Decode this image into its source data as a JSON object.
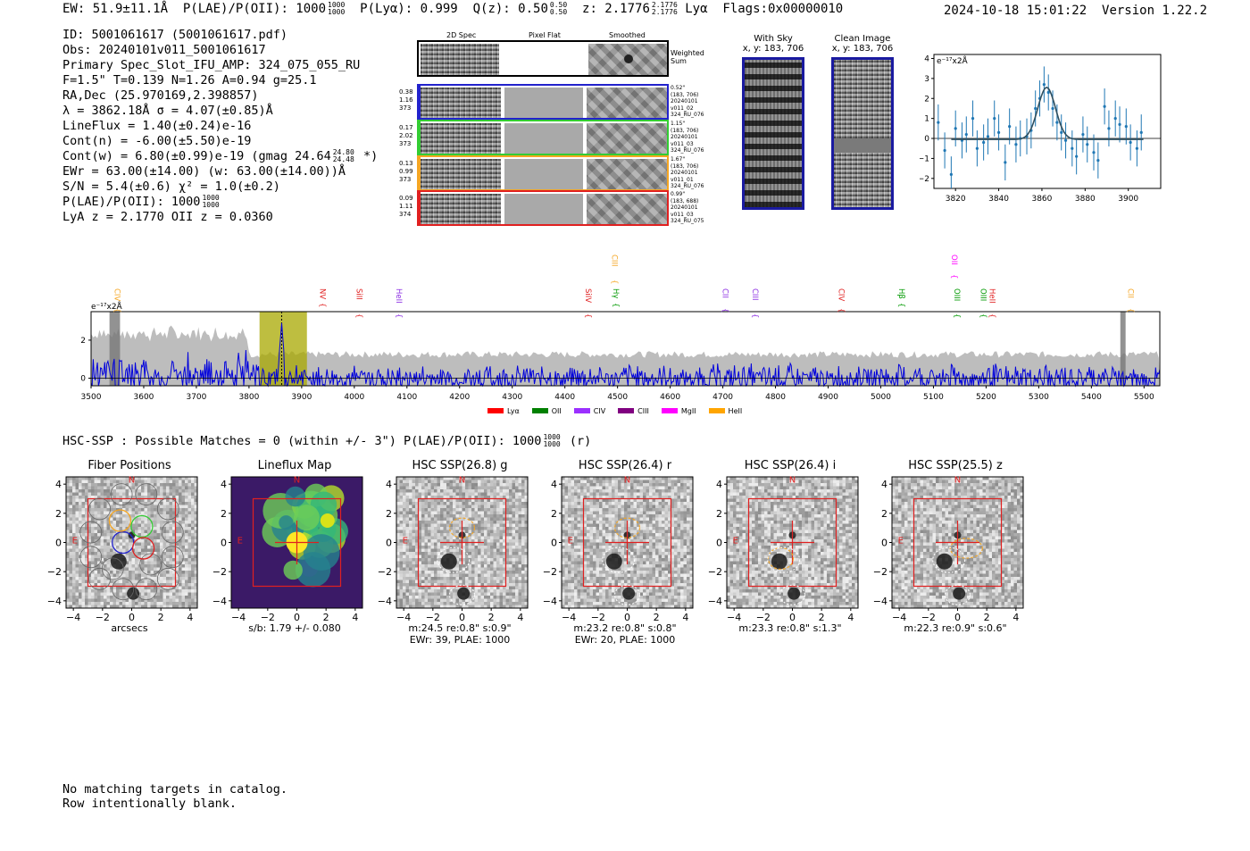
{
  "header": {
    "ew": "EW: 51.9±11.1Å",
    "plae_label": "P(LAE)/P(OII): 1000",
    "plae_sup": "1000",
    "plae_sub": "1000",
    "plya": "P(Lyα): 0.999",
    "qz_label": "Q(z): 0.50",
    "qz_sup": "0.50",
    "qz_sub": "0.50",
    "z_label": "z: 2.1776",
    "z_sup": "2.1776",
    "z_sub": "2.1776",
    "z_line": "Lyα",
    "flags": "Flags:0x00000010",
    "datetime": "2024-10-18 15:01:22",
    "version": "Version 1.22.2"
  },
  "info": {
    "id": "ID: 5001061617 (5001061617.pdf)",
    "obs": "Obs: 20240101v011_5001061617",
    "primary": "Primary Spec_Slot_IFU_AMP: 324_075_055_RU",
    "fparams": "F=1.5\"  T=0.139  N=1.26  A=0.94  g=25.1",
    "radec": "RA,Dec (25.970169,2.398857)",
    "lambda": "λ = 3862.18Å  σ = 4.07(±0.85)Å",
    "lineflux": "LineFlux = 1.40(±0.24)e-16",
    "contn": "Cont(n) = -6.00(±5.50)e-19",
    "contw_main": "Cont(w) = 6.80(±0.99)e-19 (gmag 24.64",
    "contw_sup": "24.80",
    "contw_sub": "24.48",
    "contw_end": " *)",
    "ewr": "EWr = 63.00(±14.00) (w: 63.00(±14.00))Å",
    "sn": "S/N = 5.4(±0.6)  χ² = 1.0(±0.2)",
    "plae_main": "P(LAE)/P(OII): 1000",
    "plae_sup": "1000",
    "plae_sub": "1000",
    "lya_z": "LyA z = 2.1770  OII z = 0.0360"
  },
  "spec2d": {
    "col_headers": [
      "2D Spec",
      "Pixel Flat",
      "Smoothed"
    ],
    "weighted_label": "Weighted Sum",
    "fibers": [
      {
        "left": [
          "0.38",
          "1.16",
          "373"
        ],
        "right": [
          "0.52\"",
          "(183, 706)",
          "20240101",
          "v011_02",
          "324_RU_076"
        ],
        "color": "#2222cc"
      },
      {
        "left": [
          "0.17",
          "2.02",
          "373"
        ],
        "right": [
          "1.15\"",
          "(183, 706)",
          "20240101",
          "v011_03",
          "324_RU_076"
        ],
        "color": "#33cc33"
      },
      {
        "left": [
          "0.13",
          "0.99",
          "373"
        ],
        "right": [
          "1.67\"",
          "(183, 706)",
          "20240101",
          "v011_01",
          "324_RU_076"
        ],
        "color": "#f5a623"
      },
      {
        "left": [
          "0.09",
          "1.11",
          "374"
        ],
        "right": [
          "0.99\"",
          "(183, 688)",
          "20240101",
          "v011_03",
          "324_RU_075"
        ],
        "color": "#e02020"
      }
    ]
  },
  "sky_panels": {
    "with_sky_title": "With Sky",
    "with_sky_xy": "x, y: 183, 706",
    "clean_title": "Clean Image",
    "clean_xy": "x, y: 183, 706"
  },
  "chart_data": [
    {
      "type": "line",
      "name": "zoom-spectrum",
      "title": "",
      "ylabel": "e⁻¹⁷x2Å",
      "xlim": [
        3810,
        3915
      ],
      "ylim": [
        -2.5,
        4.2
      ],
      "xticks": [
        3820,
        3840,
        3860,
        3880,
        3900
      ],
      "yticks": [
        -2,
        -1,
        0,
        1,
        2,
        3,
        4
      ],
      "x": [
        3812,
        3815,
        3818,
        3820,
        3823,
        3825,
        3828,
        3830,
        3833,
        3835,
        3838,
        3840,
        3843,
        3845,
        3848,
        3850,
        3853,
        3855,
        3857,
        3859,
        3861,
        3863,
        3865,
        3867,
        3869,
        3871,
        3874,
        3876,
        3879,
        3881,
        3884,
        3886,
        3889,
        3891,
        3894,
        3896,
        3899,
        3901,
        3904,
        3906
      ],
      "y": [
        0.8,
        -0.6,
        -1.8,
        0.5,
        -0.1,
        0.2,
        1.0,
        -0.5,
        -0.2,
        0.1,
        1.0,
        0.3,
        -1.2,
        0.6,
        -0.3,
        0.0,
        0.1,
        0.4,
        1.5,
        2.0,
        2.7,
        2.3,
        1.5,
        0.8,
        0.3,
        -0.1,
        -0.5,
        -0.9,
        0.2,
        -0.3,
        -0.7,
        -1.1,
        1.6,
        0.5,
        1.0,
        0.7,
        0.6,
        -0.2,
        -0.5,
        0.3
      ],
      "yerr": [
        0.9,
        0.9,
        0.9,
        0.9,
        0.9,
        0.9,
        0.9,
        0.9,
        0.9,
        0.9,
        0.9,
        0.9,
        0.9,
        0.9,
        0.9,
        0.9,
        0.9,
        0.9,
        0.9,
        0.9,
        0.9,
        0.9,
        0.9,
        0.9,
        0.9,
        0.9,
        0.9,
        0.9,
        0.9,
        0.9,
        0.9,
        0.9,
        0.9,
        0.9,
        0.9,
        0.9,
        0.9,
        0.9,
        0.9,
        0.9
      ],
      "fit": {
        "center": 3862.2,
        "sigma": 4.07,
        "amplitude": 2.6,
        "baseline": -0.05
      }
    },
    {
      "type": "line",
      "name": "full-spectrum",
      "ylabel": "e⁻¹⁷x2Å",
      "xlim": [
        3500,
        5530
      ],
      "ylim": [
        -0.4,
        3.5
      ],
      "xticks": [
        3500,
        3600,
        3700,
        3800,
        3900,
        4000,
        4100,
        4200,
        4300,
        4400,
        4500,
        4600,
        4700,
        4800,
        4900,
        5000,
        5100,
        5200,
        5300,
        5400,
        5500
      ],
      "yticks": [
        0,
        2
      ],
      "highlight_range": [
        3820,
        3910
      ],
      "masked_ranges": [
        [
          3535,
          3555
        ],
        [
          5455,
          5465
        ]
      ],
      "peak_wavelength": 3862,
      "noise_level": 0.55,
      "error_level": 1.25
    }
  ],
  "line_labels": [
    {
      "name": "CIV",
      "wave": 3550,
      "color": "#f5a623",
      "tier": 1
    },
    {
      "name": "NV",
      "wave": 3940,
      "color": "#e02020",
      "tier": 1
    },
    {
      "name": "SiII",
      "wave": 4010,
      "color": "#e02020",
      "tier": 1
    },
    {
      "name": "HeII",
      "wave": 4085,
      "color": "#8a2be2",
      "tier": 1
    },
    {
      "name": "SiIV",
      "wave": 4445,
      "color": "#e02020",
      "tier": 1
    },
    {
      "name": "CIII",
      "wave": 4495,
      "color": "#f5a623",
      "tier": 0
    },
    {
      "name": "Hγ",
      "wave": 4497,
      "color": "#009900",
      "tier": 1
    },
    {
      "name": "CII",
      "wave": 4705,
      "color": "#8a2be2",
      "tier": 1
    },
    {
      "name": "CIII",
      "wave": 4762,
      "color": "#8a2be2",
      "tier": 1
    },
    {
      "name": "CIV",
      "wave": 4925,
      "color": "#e02020",
      "tier": 1
    },
    {
      "name": "Hβ",
      "wave": 5040,
      "color": "#009900",
      "tier": 1
    },
    {
      "name": "OII",
      "wave": 5140,
      "color": "#ff00ff",
      "tier": 0
    },
    {
      "name": "OIII",
      "wave": 5145,
      "color": "#009900",
      "tier": 1
    },
    {
      "name": "OIII",
      "wave": 5195,
      "color": "#009900",
      "tier": 1
    },
    {
      "name": "HeII",
      "wave": 5212,
      "color": "#e02020",
      "tier": 1
    },
    {
      "name": "CII",
      "wave": 5475,
      "color": "#f5a623",
      "tier": 1
    }
  ],
  "legend": [
    {
      "label": "Lyα",
      "color": "#ff0000"
    },
    {
      "label": "OII",
      "color": "#008000"
    },
    {
      "label": "CIV",
      "color": "#9b30ff"
    },
    {
      "label": "CIII",
      "color": "#800080"
    },
    {
      "label": "MgII",
      "color": "#ff00ff"
    },
    {
      "label": "HeII",
      "color": "#ffa500"
    }
  ],
  "hsc": {
    "summary": "HSC-SSP : Possible Matches = 0 (within +/- 3\")  P(LAE)/P(OII): 1000",
    "summary_sup": "1000",
    "summary_sub": "1000",
    "summary_end": " (r)",
    "panels": [
      {
        "title": "Fiber Positions",
        "cap1": "arcsecs",
        "cap2": ""
      },
      {
        "title": "Lineflux Map",
        "cap1": "s/b: 1.79 +/- 0.080",
        "cap2": ""
      },
      {
        "title": "HSC SSP(26.8) g",
        "cap1": "m:24.5  re:0.8\"  s:0.9\"",
        "cap2": "EWr: 39, PLAE: 1000"
      },
      {
        "title": "HSC SSP(26.4) r",
        "cap1": "m:23.2  re:0.8\"  s:0.8\"",
        "cap2": "EWr: 20, PLAE: 1000"
      },
      {
        "title": "HSC SSP(26.4) i",
        "cap1": "m:23.3  re:0.8\"  s:1.3\"",
        "cap2": ""
      },
      {
        "title": "HSC SSP(25.5) z",
        "cap1": "m:22.3  re:0.9\"  s:0.6\"",
        "cap2": ""
      }
    ],
    "axis_ticks_x": [
      "−4",
      "−2",
      "0",
      "2",
      "4"
    ],
    "axis_ticks_y": [
      "4",
      "2",
      "0",
      "−2",
      "−4"
    ],
    "north": "N",
    "east": "E"
  },
  "footer": {
    "line1": "No matching targets in catalog.",
    "line2": "Row intentionally blank."
  }
}
